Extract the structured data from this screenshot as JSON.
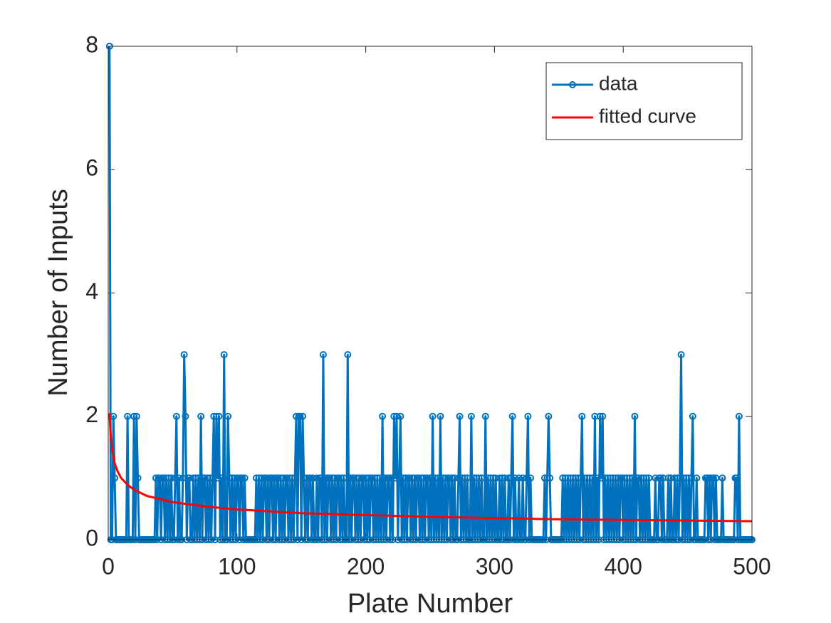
{
  "chart_data": {
    "type": "line",
    "xlabel": "Plate Number",
    "ylabel": "Number of Inputs",
    "xlim": [
      0,
      500
    ],
    "ylim": [
      0,
      8
    ],
    "xticks": [
      0,
      100,
      200,
      300,
      400,
      500
    ],
    "yticks": [
      0,
      2,
      4,
      6,
      8
    ],
    "legend": "northeast",
    "grid": false,
    "series": [
      {
        "name": "data",
        "color": "#0072BD",
        "marker": "circle",
        "x": [
          1,
          2,
          3,
          4,
          5,
          6,
          7,
          8,
          9,
          10,
          11,
          12,
          13,
          14,
          15,
          16,
          17,
          18,
          19,
          20,
          21,
          22,
          23,
          24,
          25,
          26,
          27,
          28,
          29,
          30,
          31,
          32,
          33,
          34,
          35,
          36,
          37,
          38,
          39,
          40,
          41,
          42,
          43,
          44,
          45,
          46,
          47,
          48,
          49,
          50,
          51,
          52,
          53,
          54,
          55,
          56,
          57,
          58,
          59,
          60,
          61,
          62,
          63,
          64,
          65,
          66,
          67,
          68,
          69,
          70,
          71,
          72,
          73,
          74,
          75,
          76,
          77,
          78,
          79,
          80,
          81,
          82,
          83,
          84,
          85,
          86,
          87,
          88,
          89,
          90,
          91,
          92,
          93,
          94,
          95,
          96,
          97,
          98,
          99,
          100,
          101,
          102,
          103,
          104,
          105,
          106,
          107,
          108,
          109,
          110,
          111,
          112,
          113,
          114,
          115,
          116,
          117,
          118,
          119,
          120,
          121,
          122,
          123,
          124,
          125,
          126,
          127,
          128,
          129,
          130,
          131,
          132,
          133,
          134,
          135,
          136,
          137,
          138,
          139,
          140,
          141,
          142,
          143,
          144,
          145,
          146,
          147,
          148,
          149,
          150,
          151,
          152,
          153,
          154,
          155,
          156,
          157,
          158,
          159,
          160,
          161,
          162,
          163,
          164,
          165,
          166,
          167,
          168,
          169,
          170,
          171,
          172,
          173,
          174,
          175,
          176,
          177,
          178,
          179,
          180,
          181,
          182,
          183,
          184,
          185,
          186,
          187,
          188,
          189,
          190,
          191,
          192,
          193,
          194,
          195,
          196,
          197,
          198,
          199,
          200,
          201,
          202,
          203,
          204,
          205,
          206,
          207,
          208,
          209,
          210,
          211,
          212,
          213,
          214,
          215,
          216,
          217,
          218,
          219,
          220,
          221,
          222,
          223,
          224,
          225,
          226,
          227,
          228,
          229,
          230,
          231,
          232,
          233,
          234,
          235,
          236,
          237,
          238,
          239,
          240,
          241,
          242,
          243,
          244,
          245,
          246,
          247,
          248,
          249,
          250,
          251,
          252,
          253,
          254,
          255,
          256,
          257,
          258,
          259,
          260,
          261,
          262,
          263,
          264,
          265,
          266,
          267,
          268,
          269,
          270,
          271,
          272,
          273,
          274,
          275,
          276,
          277,
          278,
          279,
          280,
          281,
          282,
          283,
          284,
          285,
          286,
          287,
          288,
          289,
          290,
          291,
          292,
          293,
          294,
          295,
          296,
          297,
          298,
          299,
          300,
          301,
          302,
          303,
          304,
          305,
          306,
          307,
          308,
          309,
          310,
          311,
          312,
          313,
          314,
          315,
          316,
          317,
          318,
          319,
          320,
          321,
          322,
          323,
          324,
          325,
          326,
          327,
          328,
          329,
          330,
          331,
          332,
          333,
          334,
          335,
          336,
          337,
          338,
          339,
          340,
          341,
          342,
          343,
          344,
          345,
          346,
          347,
          348,
          349,
          350,
          351,
          352,
          353,
          354,
          355,
          356,
          357,
          358,
          359,
          360,
          361,
          362,
          363,
          364,
          365,
          366,
          367,
          368,
          369,
          370,
          371,
          372,
          373,
          374,
          375,
          376,
          377,
          378,
          379,
          380,
          381,
          382,
          383,
          384,
          385,
          386,
          387,
          388,
          389,
          390,
          391,
          392,
          393,
          394,
          395,
          396,
          397,
          398,
          399,
          400,
          401,
          402,
          403,
          404,
          405,
          406,
          407,
          408,
          409,
          410,
          411,
          412,
          413,
          414,
          415,
          416,
          417,
          418,
          419,
          420,
          421,
          422,
          423,
          424,
          425,
          426,
          427,
          428,
          429,
          430,
          431,
          432,
          433,
          434,
          435,
          436,
          437,
          438,
          439,
          440,
          441,
          442,
          443,
          444,
          445,
          446,
          447,
          448,
          449,
          450,
          451,
          452,
          453,
          454,
          455,
          456,
          457,
          458,
          459,
          460,
          461,
          462,
          463,
          464,
          465,
          466,
          467,
          468,
          469,
          470,
          471,
          472,
          473,
          474,
          475,
          476,
          477,
          478,
          479,
          480,
          481,
          482,
          483,
          484,
          485,
          486,
          487,
          488,
          489,
          490,
          491,
          492,
          493,
          494,
          495,
          496,
          497,
          498,
          499,
          500
        ],
        "values": [
          8,
          0,
          0,
          2,
          1,
          0,
          0,
          0,
          0,
          0,
          0,
          0,
          0,
          0,
          2,
          0,
          0,
          0,
          0,
          2,
          0,
          2,
          1,
          0,
          0,
          0,
          0,
          0,
          0,
          0,
          0,
          0,
          0,
          0,
          0,
          0,
          1,
          0,
          1,
          1,
          0,
          1,
          1,
          0,
          1,
          0,
          1,
          0,
          1,
          0,
          0,
          1,
          2,
          0,
          1,
          0,
          0,
          1,
          3,
          2,
          0,
          1,
          1,
          0,
          0,
          1,
          0,
          1,
          0,
          1,
          0,
          2,
          0,
          1,
          1,
          0,
          1,
          0,
          1,
          0,
          1,
          2,
          0,
          2,
          1,
          2,
          0,
          1,
          0,
          3,
          0,
          0,
          2,
          1,
          0,
          1,
          0,
          1,
          0,
          1,
          1,
          0,
          1,
          1,
          0,
          1,
          0,
          0,
          0,
          0,
          0,
          0,
          0,
          0,
          1,
          0,
          1,
          0,
          1,
          0,
          1,
          1,
          0,
          1,
          0,
          1,
          1,
          0,
          1,
          0,
          1,
          1,
          0,
          1,
          0,
          1,
          0,
          1,
          1,
          0,
          1,
          0,
          1,
          0,
          1,
          2,
          0,
          2,
          2,
          0,
          2,
          1,
          0,
          1,
          0,
          1,
          1,
          0,
          1,
          0,
          0,
          1,
          0,
          1,
          1,
          0,
          3,
          0,
          1,
          0,
          1,
          1,
          0,
          1,
          0,
          1,
          0,
          1,
          1,
          0,
          1,
          0,
          1,
          0,
          0,
          3,
          0,
          1,
          0,
          1,
          1,
          0,
          1,
          0,
          1,
          0,
          1,
          1,
          0,
          1,
          0,
          1,
          0,
          1,
          1,
          0,
          1,
          0,
          1,
          0,
          1,
          0,
          2,
          0,
          1,
          0,
          1,
          1,
          0,
          1,
          0,
          2,
          1,
          2,
          0,
          1,
          2,
          0,
          1,
          0,
          1,
          0,
          1,
          1,
          0,
          1,
          0,
          1,
          0,
          1,
          1,
          0,
          1,
          0,
          1,
          0,
          1,
          1,
          0,
          1,
          0,
          2,
          0,
          1,
          0,
          1,
          0,
          2,
          0,
          1,
          0,
          1,
          0,
          1,
          1,
          0,
          1,
          0,
          1,
          0,
          0,
          1,
          2,
          0,
          1,
          0,
          1,
          0,
          1,
          0,
          0,
          2,
          0,
          1,
          0,
          1,
          0,
          1,
          0,
          1,
          0,
          0,
          2,
          0,
          1,
          0,
          1,
          0,
          1,
          0,
          1,
          0,
          0,
          1,
          0,
          1,
          0,
          1,
          0,
          0,
          1,
          0,
          1,
          2,
          0,
          1,
          0,
          0,
          1,
          0,
          0,
          1,
          0,
          0,
          1,
          2,
          0,
          1,
          0,
          0,
          0,
          0,
          0,
          0,
          0,
          0,
          0,
          0,
          1,
          0,
          1,
          2,
          1,
          0,
          0,
          0,
          0,
          0,
          0,
          0,
          0,
          0,
          1,
          0,
          1,
          0,
          1,
          0,
          1,
          0,
          1,
          0,
          1,
          0,
          1,
          0,
          1,
          2,
          0,
          1,
          0,
          1,
          0,
          1,
          0,
          1,
          0,
          2,
          0,
          1,
          0,
          2,
          1,
          2,
          0,
          1,
          0,
          1,
          0,
          1,
          0,
          1,
          0,
          1,
          0,
          1,
          0,
          1,
          1,
          0,
          1,
          0,
          1,
          0,
          1,
          0,
          1,
          0,
          2,
          0,
          1,
          1,
          0,
          1,
          0,
          1,
          0,
          1,
          0,
          1,
          0,
          0,
          0,
          0,
          1,
          0,
          0,
          1,
          1,
          0,
          1,
          0,
          0,
          0,
          1,
          0,
          1,
          0,
          0,
          1,
          0,
          1,
          0,
          1,
          3,
          0,
          1,
          0,
          1,
          0,
          1,
          0,
          1,
          2,
          0,
          0,
          1,
          0,
          0,
          0,
          0,
          0,
          0,
          1,
          1,
          0,
          1,
          0,
          1,
          1,
          0,
          1,
          0,
          0,
          0,
          0,
          1,
          0,
          0,
          0,
          0,
          0,
          0,
          0,
          0,
          0,
          1,
          1,
          0,
          2,
          0,
          0,
          0,
          0,
          0,
          0,
          0,
          0,
          0,
          0
        ]
      },
      {
        "name": "fitted curve",
        "color": "#FF0000",
        "x": [
          1,
          2,
          3,
          5,
          7,
          10,
          15,
          20,
          30,
          50,
          75,
          100,
          150,
          200,
          250,
          300,
          350,
          400,
          450,
          500
        ],
        "values": [
          2.05,
          1.65,
          1.46,
          1.24,
          1.12,
          1.0,
          0.89,
          0.81,
          0.71,
          0.61,
          0.54,
          0.49,
          0.43,
          0.4,
          0.37,
          0.35,
          0.33,
          0.32,
          0.31,
          0.3
        ]
      }
    ]
  }
}
